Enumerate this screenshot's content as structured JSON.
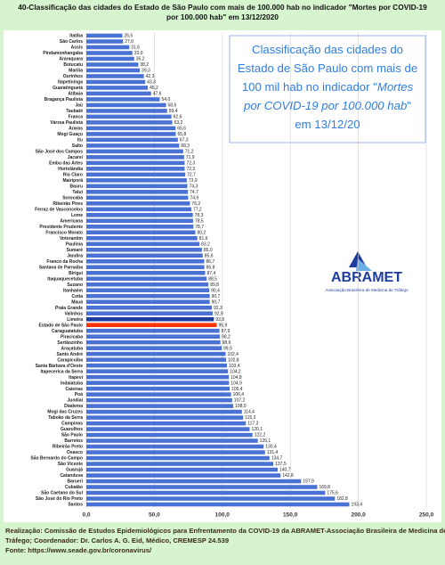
{
  "chart_data": {
    "type": "bar",
    "orientation": "horizontal",
    "title": [
      "40-Classificação das cidades do Estado de São Paulo com mais de 100.000 hab no indicador \"Mortes por COVID-19",
      "por 100.000 hab\" em 13/12/2020"
    ],
    "categories": [
      "Itatiba",
      "São Carlos",
      "Assis",
      "Pindamonhangaba",
      "Araraquara",
      "Botucatu",
      "Marília",
      "Ourinhos",
      "Itapetininga",
      "Guaratinguetá",
      "Atibaia",
      "Bragança Paulista",
      "Jaú",
      "Taubaté",
      "Franca",
      "Várzea Paulista",
      "Araras",
      "Mogi Guaçu",
      "Itu",
      "Salto",
      "São José dos Campos",
      "Jacareí",
      "Embu das Artes",
      "Hortolândia",
      "Rio Claro",
      "Mairiporã",
      "Bauru",
      "Tatuí",
      "Sorocaba",
      "Ribeirão Pires",
      "Ferraz de Vasconcelos",
      "Leme",
      "Americana",
      "Presidente Prudente",
      "Francisco Morato",
      "Votorantim",
      "Paulínia",
      "Sumaré",
      "Jandira",
      "Franco da Rocha",
      "Santana de Parnaíba",
      "Birigui",
      "Itaquaquecetuba",
      "Suzano",
      "Itanhaém",
      "Cotia",
      "Mauá",
      "Praia Grande",
      "Valinhos",
      "Limeira",
      "Estado de São Paulo",
      "Caraguatatuba",
      "Piracicaba",
      "Sertãozinho",
      "Araçatuba",
      "Santo André",
      "Carapicuíba",
      "Santa Bárbara d'Oeste",
      "Itapecerica da Serra",
      "Itapevi",
      "Indaiatuba",
      "Caieiras",
      "Poá",
      "Jundiaí",
      "Diadema",
      "Mogi das Cruzes",
      "Taboão da Serra",
      "Campinas",
      "Guarulhos",
      "São Paulo",
      "Barretos",
      "Ribeirão Preto",
      "Osasco",
      "São Bernardo do Campo",
      "São Vicente",
      "Guarujá",
      "Catanduva",
      "Barueri",
      "Cubatão",
      "São Caetano do Sul",
      "São José do Rio Preto",
      "Santos"
    ],
    "values": [
      26.5,
      27.0,
      31.6,
      33.9,
      35.2,
      38.2,
      39.3,
      42.3,
      43.3,
      45.2,
      47.6,
      54.0,
      58.6,
      59.4,
      62.6,
      63.2,
      65.6,
      65.8,
      67.3,
      68.3,
      71.2,
      71.9,
      72.3,
      72.3,
      72.7,
      73.9,
      74.3,
      74.7,
      74.9,
      76.2,
      77.2,
      78.3,
      78.5,
      78.7,
      80.2,
      81.6,
      83.2,
      85.0,
      85.6,
      86.7,
      86.8,
      87.4,
      88.5,
      89.8,
      90.4,
      90.7,
      90.7,
      92.3,
      92.9,
      93.8,
      95.9,
      97.9,
      98.2,
      98.6,
      99.5,
      102.4,
      102.8,
      103.4,
      104.2,
      104.8,
      104.9,
      105.4,
      106.4,
      107.2,
      108.0,
      114.4,
      115.3,
      117.3,
      120.1,
      122.2,
      126.1,
      130.4,
      131.4,
      134.7,
      137.5,
      140.7,
      142.8,
      157.9,
      169.8,
      175.6,
      182.8,
      193.4
    ],
    "value_labels": [
      "26,5",
      "27,0",
      "31,6",
      "33,9",
      "35,2",
      "38,2",
      "39,3",
      "42,3",
      "43,3",
      "45,2",
      "47,6",
      "54,0",
      "58,6",
      "59,4",
      "62,6",
      "63,2",
      "65,6",
      "65,8",
      "67,3",
      "68,3",
      "71,2",
      "71,9",
      "72,3",
      "72,3",
      "72,7",
      "73,9",
      "74,3",
      "74,7",
      "74,9",
      "76,2",
      "77,2",
      "78,3",
      "78,5",
      "78,7",
      "80,2",
      "81,6",
      "83,2",
      "85,0",
      "85,6",
      "86,7",
      "86,8",
      "87,4",
      "88,5",
      "89,8",
      "90,4",
      "90,7",
      "90,7",
      "92,3",
      "92,9",
      "93,8",
      "95,9",
      "97,9",
      "98,2",
      "98,6",
      "99,5",
      "102,4",
      "102,8",
      "103,4",
      "104,2",
      "104,8",
      "104,9",
      "105,4",
      "106,4",
      "107,2",
      "108,0",
      "114,4",
      "115,3",
      "117,3",
      "120,1",
      "122,2",
      "126,1",
      "130,4",
      "131,4",
      "134,7",
      "137,5",
      "140,7",
      "142,8",
      "157,9",
      "169,8",
      "175,6",
      "182,8",
      "193,4"
    ],
    "colors": [
      "#4a72d4",
      "#4a72d4",
      "#4a72d4",
      "#4a72d4",
      "#4a72d4",
      "#4a72d4",
      "#4a72d4",
      "#4a72d4",
      "#4a72d4",
      "#4a72d4",
      "#4a72d4",
      "#4a72d4",
      "#4a72d4",
      "#4a72d4",
      "#4a72d4",
      "#4a72d4",
      "#4a72d4",
      "#4a72d4",
      "#4a72d4",
      "#4a72d4",
      "#4a72d4",
      "#4a72d4",
      "#4a72d4",
      "#4a72d4",
      "#4a72d4",
      "#4a72d4",
      "#4a72d4",
      "#4a72d4",
      "#4a72d4",
      "#4a72d4",
      "#4a72d4",
      "#4a72d4",
      "#4a72d4",
      "#4a72d4",
      "#4a72d4",
      "#4a72d4",
      "#4a72d4",
      "#4a72d4",
      "#4a72d4",
      "#4a72d4",
      "#4a72d4",
      "#4a72d4",
      "#4a72d4",
      "#4a72d4",
      "#4a72d4",
      "#4a72d4",
      "#4a72d4",
      "#4a72d4",
      "#4a72d4",
      "#1f3d9e",
      "#ff3300",
      "#4a72d4",
      "#4a72d4",
      "#4a72d4",
      "#4a72d4",
      "#4a72d4",
      "#4a72d4",
      "#4a72d4",
      "#4a72d4",
      "#4a72d4",
      "#4a72d4",
      "#4a72d4",
      "#4a72d4",
      "#4a72d4",
      "#4a72d4",
      "#4a72d4",
      "#4a72d4",
      "#4a72d4",
      "#4a72d4",
      "#4a72d4",
      "#4a72d4",
      "#4a72d4",
      "#4a72d4",
      "#4a72d4",
      "#4a72d4",
      "#4a72d4",
      "#4a72d4",
      "#4a72d4",
      "#4a72d4",
      "#4a72d4",
      "#4a72d4",
      "#4a72d4"
    ],
    "xlim": [
      0,
      250
    ],
    "xticks": [
      {
        "value": 0,
        "label": "0,0"
      },
      {
        "value": 50,
        "label": "50,0"
      },
      {
        "value": 100,
        "label": "100,0"
      },
      {
        "value": 150,
        "label": "150,0"
      },
      {
        "value": 200,
        "label": "200,0"
      },
      {
        "value": 250,
        "label": "250,0"
      }
    ],
    "grid": true,
    "annotation": [
      [
        {
          "text": "Classificação das cidades do",
          "italic": false
        }
      ],
      [
        {
          "text": "Estado de São Paulo com mais de",
          "italic": false
        }
      ],
      [
        {
          "text": "100 mil hab  no indicador \"",
          "italic": false
        },
        {
          "text": "Mortes",
          "italic": true
        }
      ],
      [
        {
          "text": "por COVID-19 por 100.000 hab",
          "italic": true
        },
        {
          "text": "\"",
          "italic": false
        }
      ],
      [
        {
          "text": "em 13/12/20",
          "italic": false
        }
      ]
    ],
    "logo": {
      "name": "ABRAMET",
      "subtitle": "Associação Brasileira de Medicina de Tráfego"
    },
    "footer": [
      "Realização: Comissão de Estudos Epidemiológicos para Enfrentamento da COVID-19 da ABRAMET-Associação Brasileira de Medicina de",
      "Tráfego;  Coordenador: Dr. Carlos A. G. Eid, Médico, CREMESP 24.539",
      "Fonte: https://www.seade.gov.br/coronavirus/"
    ]
  }
}
